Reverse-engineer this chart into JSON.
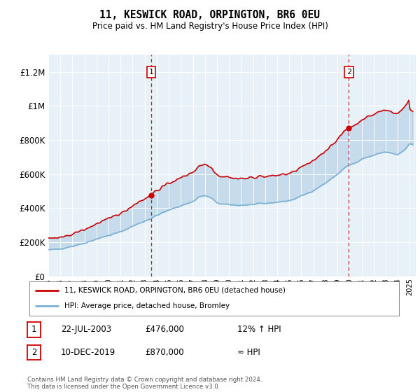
{
  "title": "11, KESWICK ROAD, ORPINGTON, BR6 0EU",
  "subtitle": "Price paid vs. HM Land Registry's House Price Index (HPI)",
  "legend_line1": "11, KESWICK ROAD, ORPINGTON, BR6 0EU (detached house)",
  "legend_line2": "HPI: Average price, detached house, Bromley",
  "annotation1_date": "22-JUL-2003",
  "annotation1_price": "£476,000",
  "annotation1_hpi": "12% ↑ HPI",
  "annotation1_year": 2003.55,
  "annotation1_value": 476000,
  "annotation2_date": "10-DEC-2019",
  "annotation2_price": "£870,000",
  "annotation2_hpi": "≈ HPI",
  "annotation2_year": 2019.94,
  "annotation2_value": 870000,
  "footer": "Contains HM Land Registry data © Crown copyright and database right 2024.\nThis data is licensed under the Open Government Licence v3.0.",
  "ylim": [
    0,
    1300000
  ],
  "yticks": [
    0,
    200000,
    400000,
    600000,
    800000,
    1000000,
    1200000
  ],
  "ytick_labels": [
    "£0",
    "£200K",
    "£400K",
    "£600K",
    "£800K",
    "£1M",
    "£1.2M"
  ],
  "red_color": "#cc0000",
  "blue_color": "#7ab0d4",
  "background_color": "#ddeeff",
  "chart_bg": "#e8f0f8"
}
